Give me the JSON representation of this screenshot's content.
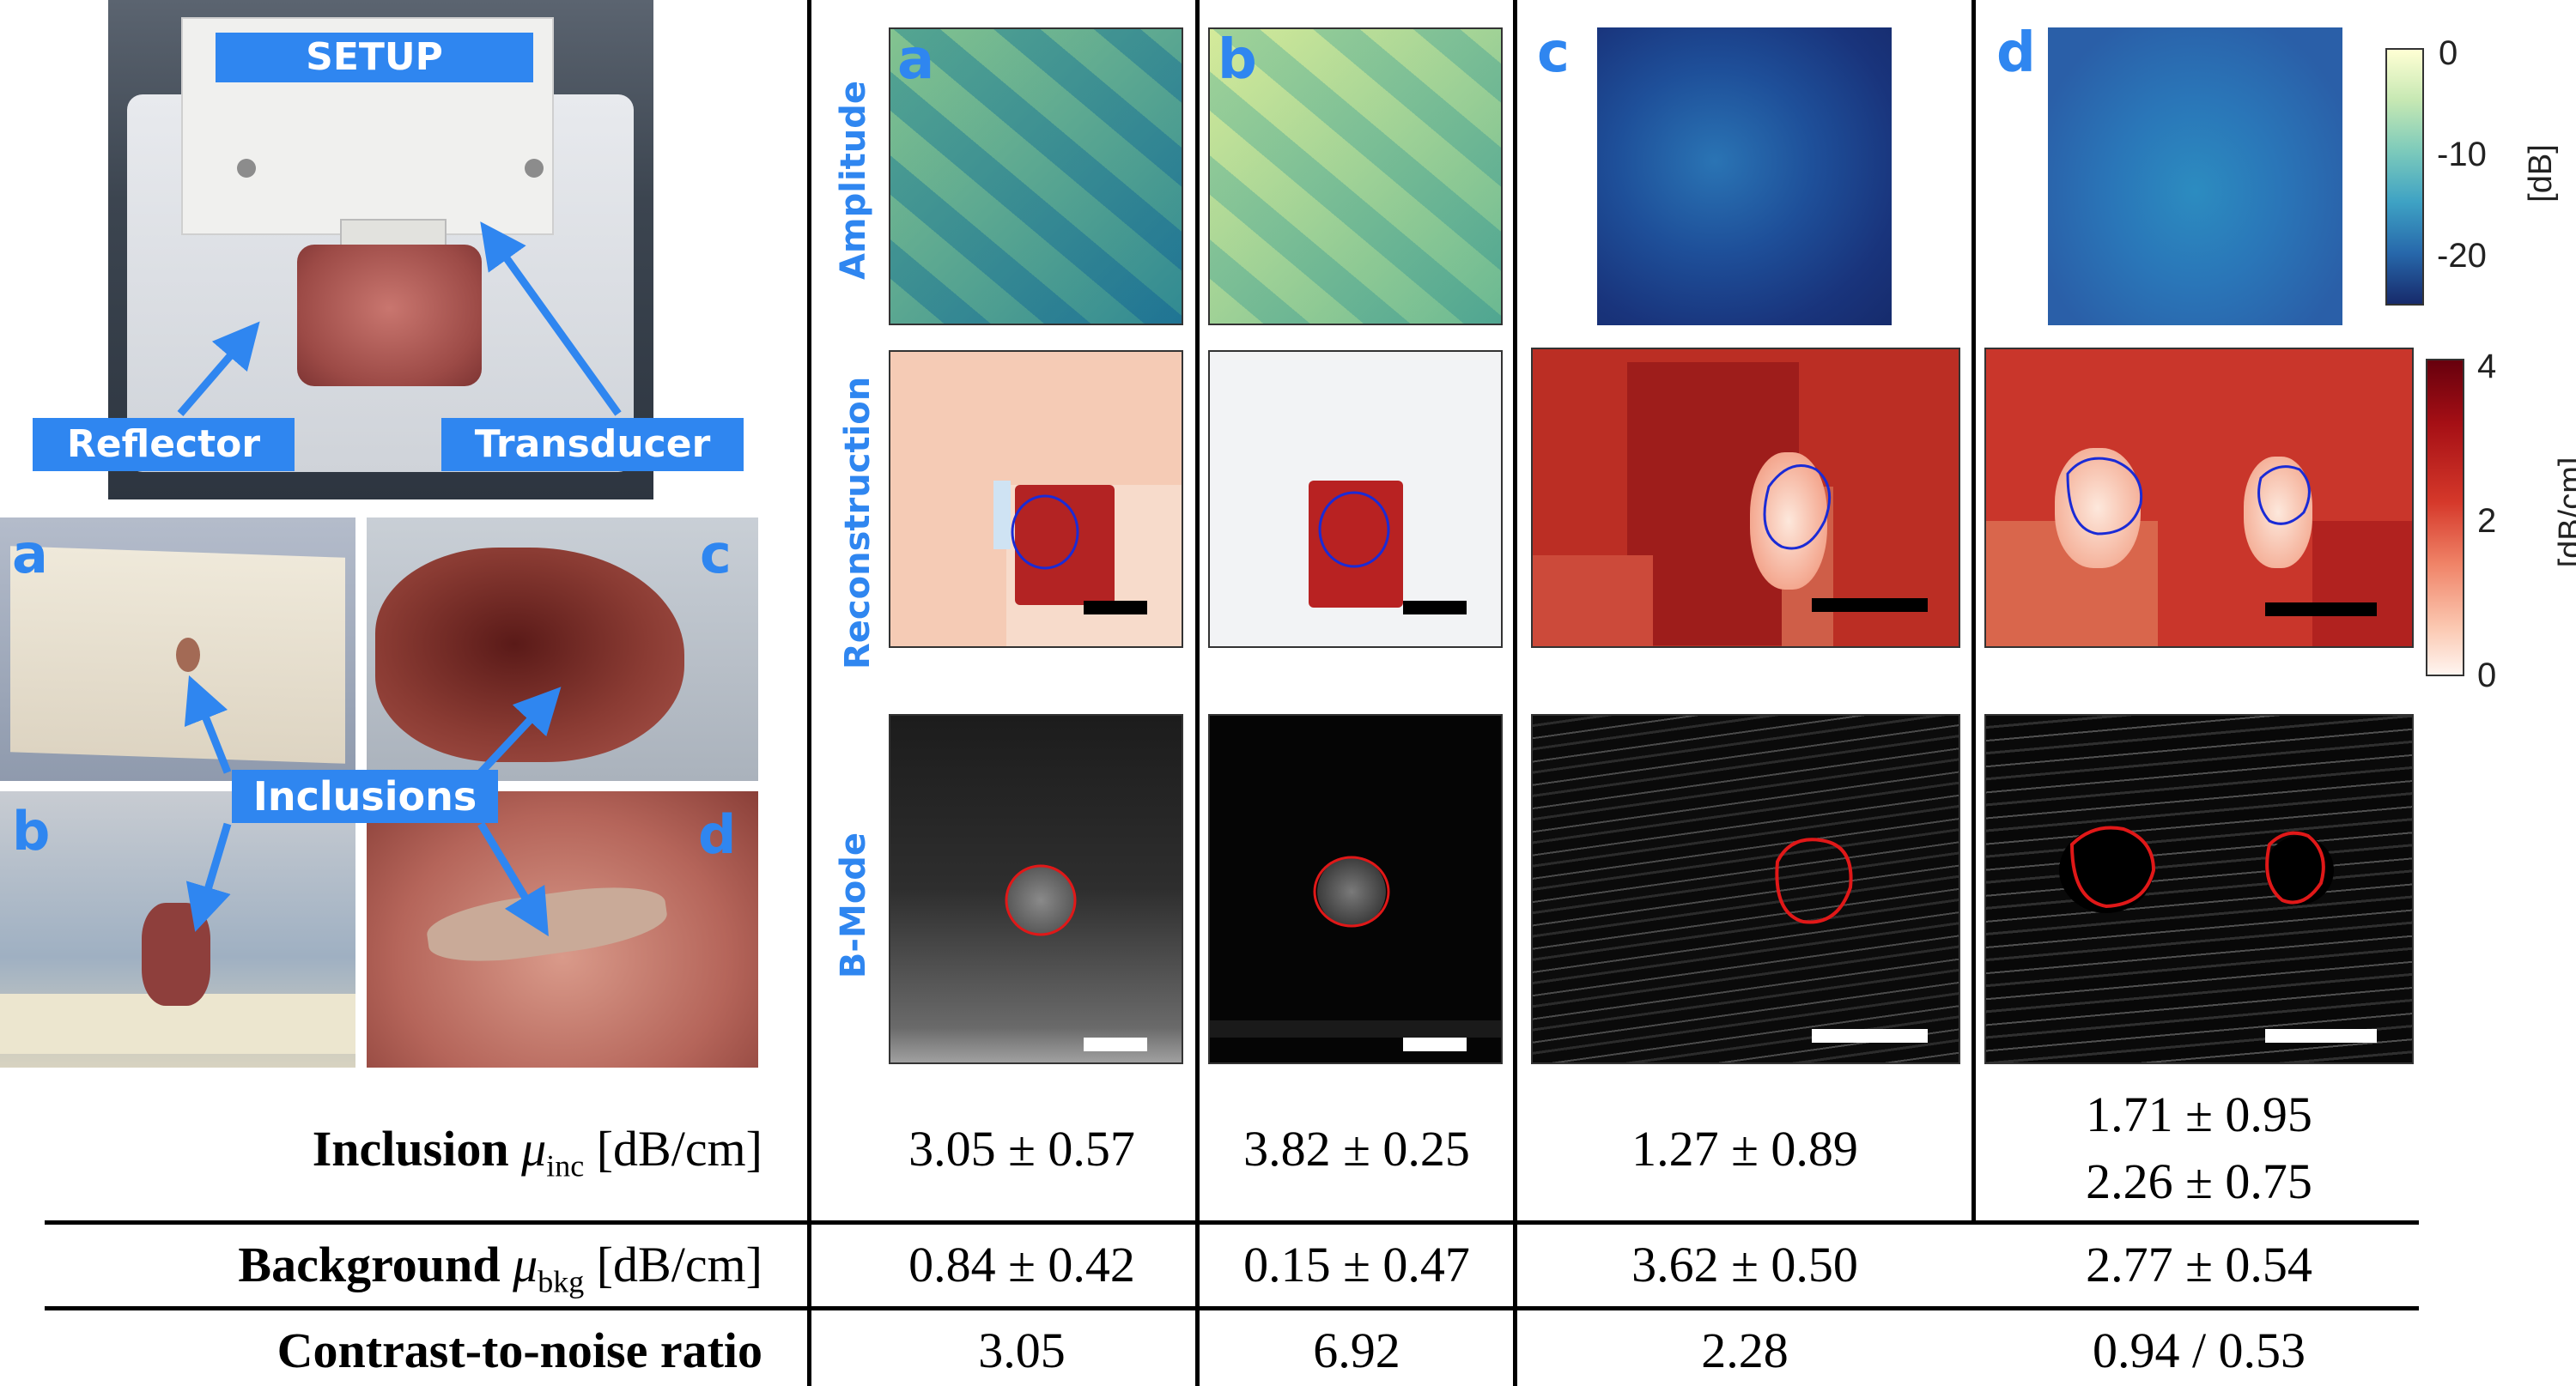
{
  "photos": {
    "setup_label": "SETUP",
    "reflector_label": "Reflector",
    "transducer_label": "Transducer",
    "inclusions_label": "Inclusions",
    "sample_letters": [
      "a",
      "b",
      "c",
      "d"
    ]
  },
  "figure": {
    "column_letters": [
      "a",
      "b",
      "c",
      "d"
    ],
    "row_labels": [
      "Amplitude",
      "Reconstruction",
      "B-Mode"
    ],
    "amplitude_colorbar": {
      "ticks": [
        "0",
        "-10",
        "-20"
      ],
      "unit": "[dB]"
    },
    "reconstruction_colorbar": {
      "ticks": [
        "4",
        "2",
        "0"
      ],
      "unit": "[dB/cm]"
    }
  },
  "table": {
    "rows": [
      {
        "label_bold": "Inclusion",
        "label_symbol": "μ",
        "label_sub": "inc",
        "label_unit": "[dB/cm]",
        "values": [
          "3.05 ± 0.57",
          "3.82 ± 0.25",
          "1.27 ± 0.89",
          "1.71 ± 0.95"
        ],
        "extra_value_d": "2.26 ± 0.75"
      },
      {
        "label_bold": "Background",
        "label_symbol": "μ",
        "label_sub": "bkg",
        "label_unit": "[dB/cm]",
        "values": [
          "0.84 ± 0.42",
          "0.15 ± 0.47",
          "3.62 ± 0.50",
          "2.77 ± 0.54"
        ]
      },
      {
        "label_bold": "Contrast-to-noise ratio",
        "values": [
          "3.05",
          "6.92",
          "2.28",
          "0.94 / 0.53"
        ]
      }
    ]
  },
  "colors": {
    "accent_blue": "#2f86f0",
    "contour_blue": "#1a2bd6",
    "contour_red": "#e01818"
  }
}
